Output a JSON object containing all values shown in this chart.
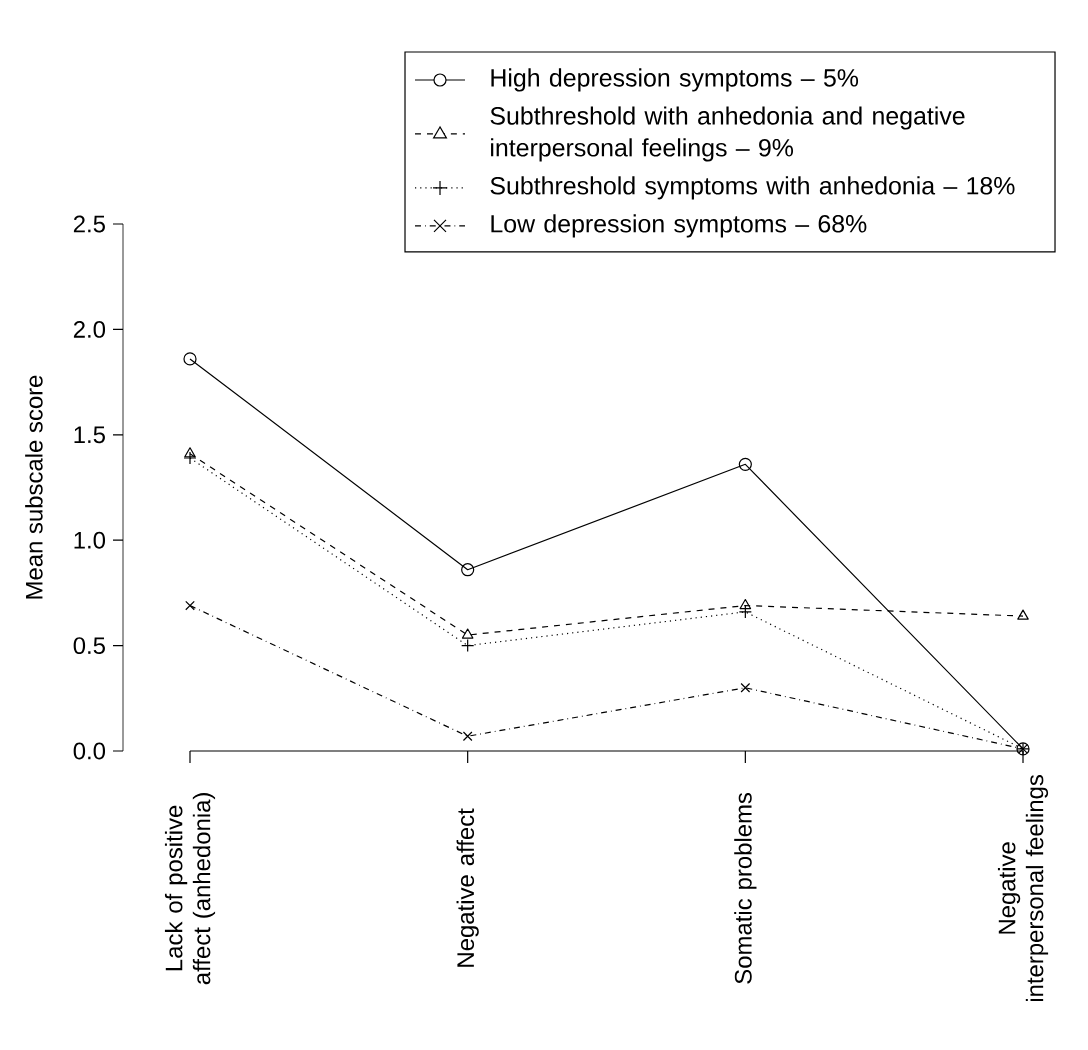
{
  "chart_data": {
    "type": "line",
    "ylabel": "Mean subscale score",
    "categories": [
      "Lack of positive affect (anhedonia)",
      "Negative affect",
      "Somatic problems",
      "Negative interpersonal feelings"
    ],
    "series": [
      {
        "name": "High depression symptoms – 5%",
        "color": "#000000",
        "marker": "circle",
        "line_style": "solid",
        "values": [
          1.86,
          0.86,
          1.36,
          0.01
        ]
      },
      {
        "name": "Subthreshold with anhedonia and negative interpersonal feelings – 9%",
        "color": "#000000",
        "marker": "triangle",
        "line_style": "dashed",
        "values": [
          1.41,
          0.55,
          0.69,
          0.64
        ]
      },
      {
        "name": "Subthreshold symptoms with anhedonia – 18%",
        "color": "#000000",
        "marker": "plus",
        "line_style": "dotted",
        "values": [
          1.39,
          0.5,
          0.66,
          0.01
        ]
      },
      {
        "name": "Low depression symptoms – 68%",
        "color": "#000000",
        "marker": "cross",
        "line_style": "dashdot",
        "values": [
          0.69,
          0.07,
          0.3,
          0.01
        ]
      }
    ],
    "ylim": [
      0,
      2.5
    ],
    "yticks": [
      {
        "value": 0,
        "label": "0.0"
      },
      {
        "value": 0.5,
        "label": "0.5"
      },
      {
        "value": 1,
        "label": "1.0"
      },
      {
        "value": 1.5,
        "label": "1.5"
      },
      {
        "value": 2,
        "label": "2.0"
      },
      {
        "value": 2.5,
        "label": "2.5"
      }
    ],
    "legend": "top right",
    "grid": false
  }
}
